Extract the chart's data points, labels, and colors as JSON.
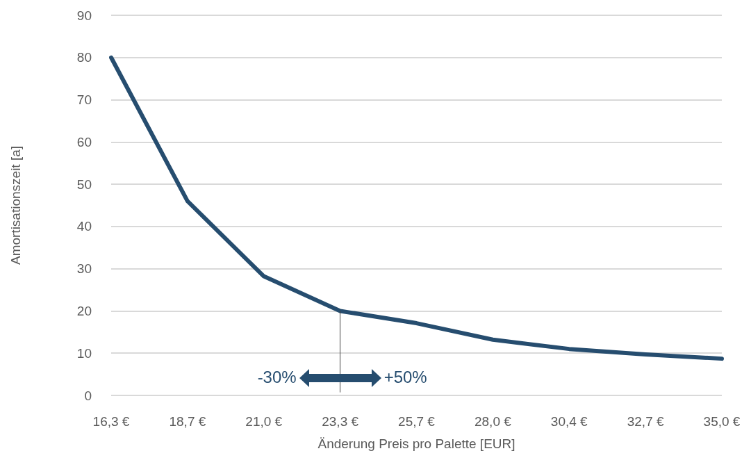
{
  "chart_data": {
    "type": "line",
    "xlabel": "Änderung Preis pro Palette [EUR]",
    "ylabel": "Amortisationszeit [a]",
    "categories": [
      "16,3 €",
      "18,7 €",
      "21,0 €",
      "23,3 €",
      "25,7 €",
      "28,0 €",
      "30,4 €",
      "32,7 €",
      "35,0 €"
    ],
    "series": [
      {
        "color": "#264d6f",
        "values": [
          80,
          46,
          28.2,
          20,
          17.1,
          13.2,
          11,
          9.7,
          8.7
        ]
      }
    ],
    "ylim": [
      0,
      90
    ],
    "yticks": [
      0,
      10,
      20,
      30,
      40,
      50,
      60,
      70,
      80,
      90
    ],
    "grid": "y",
    "marker": "none",
    "line_style": "solid",
    "ref_lines": [
      {
        "axis": "x",
        "value": "23,3 €",
        "color": "#404040"
      }
    ],
    "annotations": [
      "-30%",
      "+50%"
    ]
  }
}
